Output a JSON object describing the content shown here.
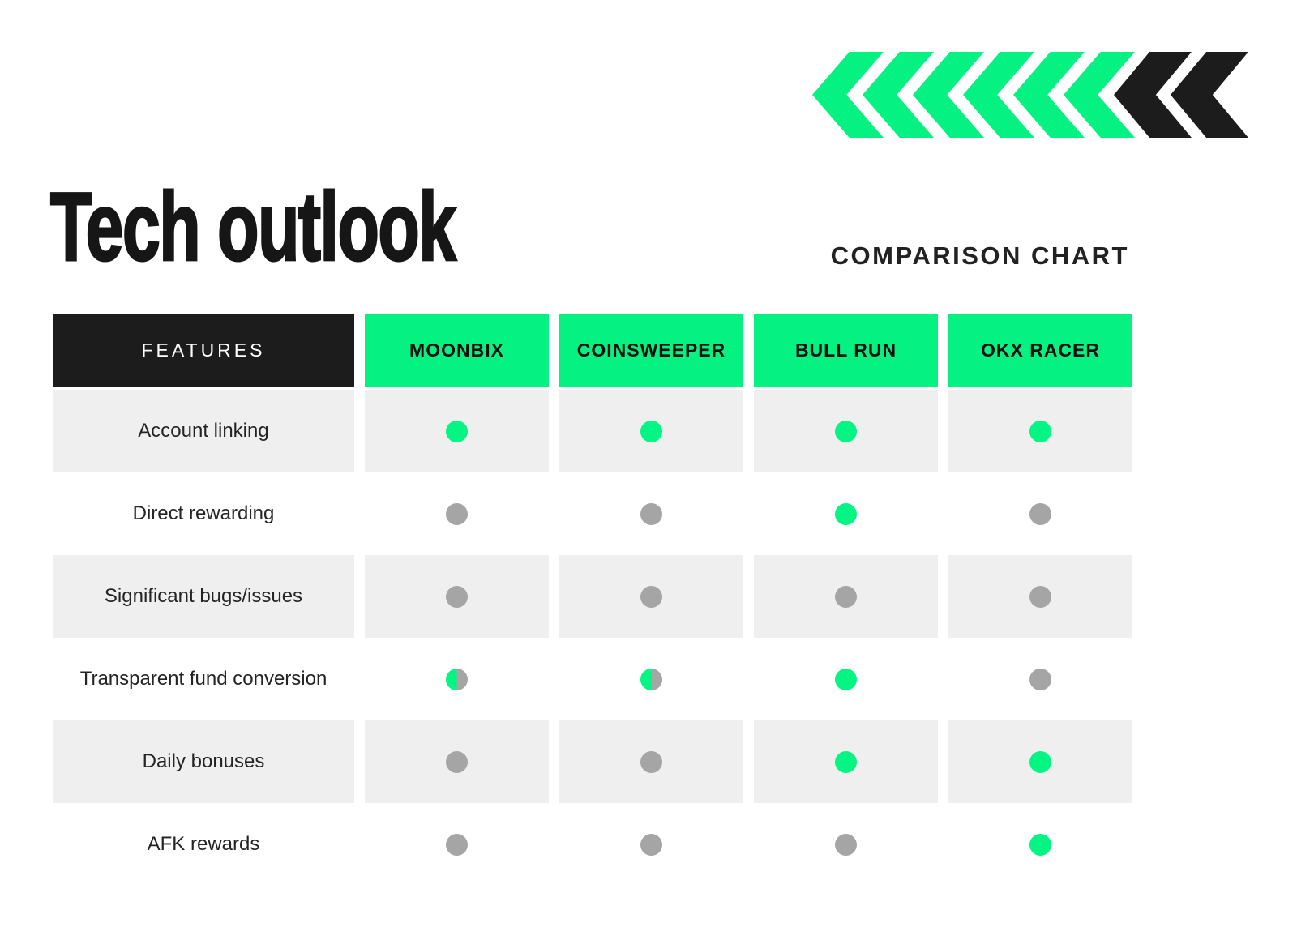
{
  "page": {
    "title": "Tech outlook",
    "subtitle": "COMPARISON CHART"
  },
  "colors": {
    "accent_green": "#05f283",
    "header_black": "#1c1c1c",
    "dot_green": "#04f584",
    "dot_gray": "#a5a5a5",
    "row_shade": "#efefef"
  },
  "decoration": {
    "chevrons": [
      "green",
      "green",
      "green",
      "green",
      "green",
      "green",
      "black",
      "black"
    ]
  },
  "table": {
    "features_header": "FEATURES",
    "columns": [
      "MOONBIX",
      "COINSWEEPER",
      "BULL RUN",
      "OKX RACER"
    ],
    "rows": [
      {
        "feature": "Account linking",
        "values": [
          "green",
          "green",
          "green",
          "green"
        ]
      },
      {
        "feature": "Direct rewarding",
        "values": [
          "gray",
          "gray",
          "green",
          "gray"
        ]
      },
      {
        "feature": "Significant bugs/issues",
        "values": [
          "gray",
          "gray",
          "gray",
          "gray"
        ]
      },
      {
        "feature": "Transparent fund conversion",
        "values": [
          "half",
          "half",
          "green",
          "gray"
        ]
      },
      {
        "feature": "Daily bonuses",
        "values": [
          "gray",
          "gray",
          "green",
          "green"
        ]
      },
      {
        "feature": "AFK rewards",
        "values": [
          "gray",
          "gray",
          "gray",
          "green"
        ]
      }
    ]
  },
  "chart_data": {
    "type": "table",
    "title": "Tech outlook",
    "subtitle": "COMPARISON CHART",
    "columns": [
      "FEATURES",
      "MOONBIX",
      "COINSWEEPER",
      "BULL RUN",
      "OKX RACER"
    ],
    "rows": [
      [
        "Account linking",
        "green-dot",
        "green-dot",
        "green-dot",
        "green-dot"
      ],
      [
        "Direct rewarding",
        "gray-dot",
        "gray-dot",
        "green-dot",
        "gray-dot"
      ],
      [
        "Significant bugs/issues",
        "gray-dot",
        "gray-dot",
        "gray-dot",
        "gray-dot"
      ],
      [
        "Transparent fund conversion",
        "half-green-half-gray-dot",
        "half-green-half-gray-dot",
        "green-dot",
        "gray-dot"
      ],
      [
        "Daily bonuses",
        "gray-dot",
        "gray-dot",
        "green-dot",
        "green-dot"
      ],
      [
        "AFK rewards",
        "gray-dot",
        "gray-dot",
        "gray-dot",
        "green-dot"
      ]
    ]
  }
}
